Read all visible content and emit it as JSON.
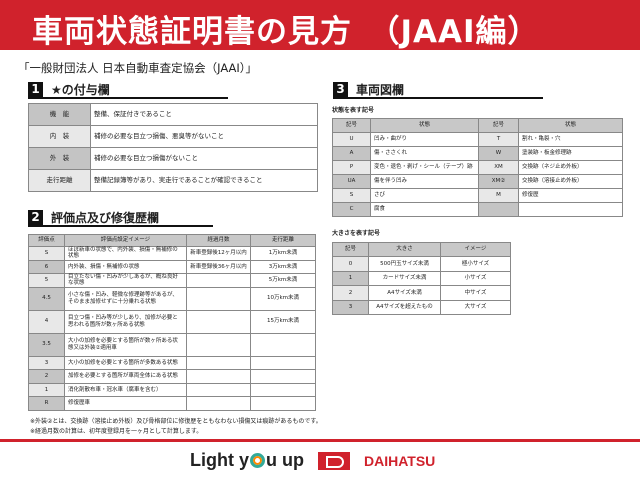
{
  "title": "車両状態証明書の見方　（JAAI編）",
  "organization": "「一般財団法人 日本自動車査定協会（JAAI）」",
  "section1": {
    "num": "1",
    "title": "★の付与欄",
    "rows": [
      {
        "k": "機　能",
        "v": "整備、保証付きであること"
      },
      {
        "k": "内　装",
        "v": "補修の必要な目立つ損傷、悪臭等がないこと"
      },
      {
        "k": "外　装",
        "v": "補修の必要な目立つ損傷がないこと"
      },
      {
        "k": "走行距離",
        "v": "整備記録簿等があり、実走行であることが確認できること"
      }
    ]
  },
  "section2": {
    "num": "2",
    "title": "評価点及び修復歴欄",
    "headers": [
      "評価点",
      "評価点設定イメージ",
      "経過月数",
      "走行距離"
    ],
    "rows": [
      [
        "S",
        "ほぼ新車の状態で、内外装、損傷・無補修の状態",
        "新車登録後12ヶ月以内",
        "1万km未満"
      ],
      [
        "6",
        "内外装、損傷・無補修の状態",
        "新車登録後36ヶ月以内",
        "3万km未満"
      ],
      [
        "5",
        "目立たない傷・凹みが少しあるが、概ね良好な状態",
        "",
        "5万km未満"
      ],
      [
        "4.5",
        "小さな傷・凹み、軽微な修理跡等があるが、そのまま加修せずに十分乗れる状態",
        "",
        "10万km未満"
      ],
      [
        "4",
        "目立つ傷・凹み等が少しあり、加修が必要と思われる箇所が数ヶ所ある状態",
        "",
        "15万km未満"
      ],
      [
        "3.5",
        "大小の加修を必要とする箇所が数ヶ所ある状態又は外装②適用車",
        "",
        ""
      ],
      [
        "3",
        "大小の加修を必要とする箇所が多数ある状態",
        "",
        ""
      ],
      [
        "2",
        "加修を必要とする箇所が車両全体にある状態",
        "",
        ""
      ],
      [
        "1",
        "消化剤散布車・冠水車（腐車を含む）",
        "",
        ""
      ],
      [
        "R",
        "修復歴車",
        "",
        ""
      ]
    ]
  },
  "section3": {
    "num": "3",
    "title": "車両図欄",
    "state_label": "状態を表す記号",
    "state_headers": [
      "記号",
      "状態",
      "記号",
      "状態"
    ],
    "state_rows": [
      [
        "U",
        "凹み・曲がり",
        "T",
        "割れ・亀裂・穴"
      ],
      [
        "A",
        "傷・ささくれ",
        "W",
        "塗装跡・板金修理跡"
      ],
      [
        "P",
        "変色・退色・剥げ・シール（テープ）跡",
        "XM",
        "交換跡（ネジ止め外板）"
      ],
      [
        "UA",
        "傷を伴う凹み",
        "XM②",
        "交換跡（溶接止め外板）"
      ],
      [
        "S",
        "さび",
        "M",
        "修復歴"
      ],
      [
        "C",
        "腐食",
        "",
        ""
      ]
    ],
    "size_label": "大きさを表す記号",
    "size_headers": [
      "記号",
      "大きさ",
      "イメージ"
    ],
    "size_rows": [
      [
        "0",
        "500円玉サイズ未満",
        "極小サイズ"
      ],
      [
        "1",
        "カードサイズ未満",
        "小サイズ"
      ],
      [
        "2",
        "A4サイズ未満",
        "中サイズ"
      ],
      [
        "3",
        "A4サイズを超えたもの",
        "大サイズ"
      ]
    ]
  },
  "notes": [
    "※外装②とは、交換跡（溶接止め外板）及び骨格部位に修復歴をともなわない損傷又は痕跡があるものです。",
    "※経過月数の計算は、初年度登録月を一ヶ月として計算します。"
  ],
  "footer": {
    "slogan_a": "Light y",
    "slogan_b": "u up",
    "brand": "DAIHATSU"
  },
  "colors": {
    "brand_red": "#d0222c"
  }
}
